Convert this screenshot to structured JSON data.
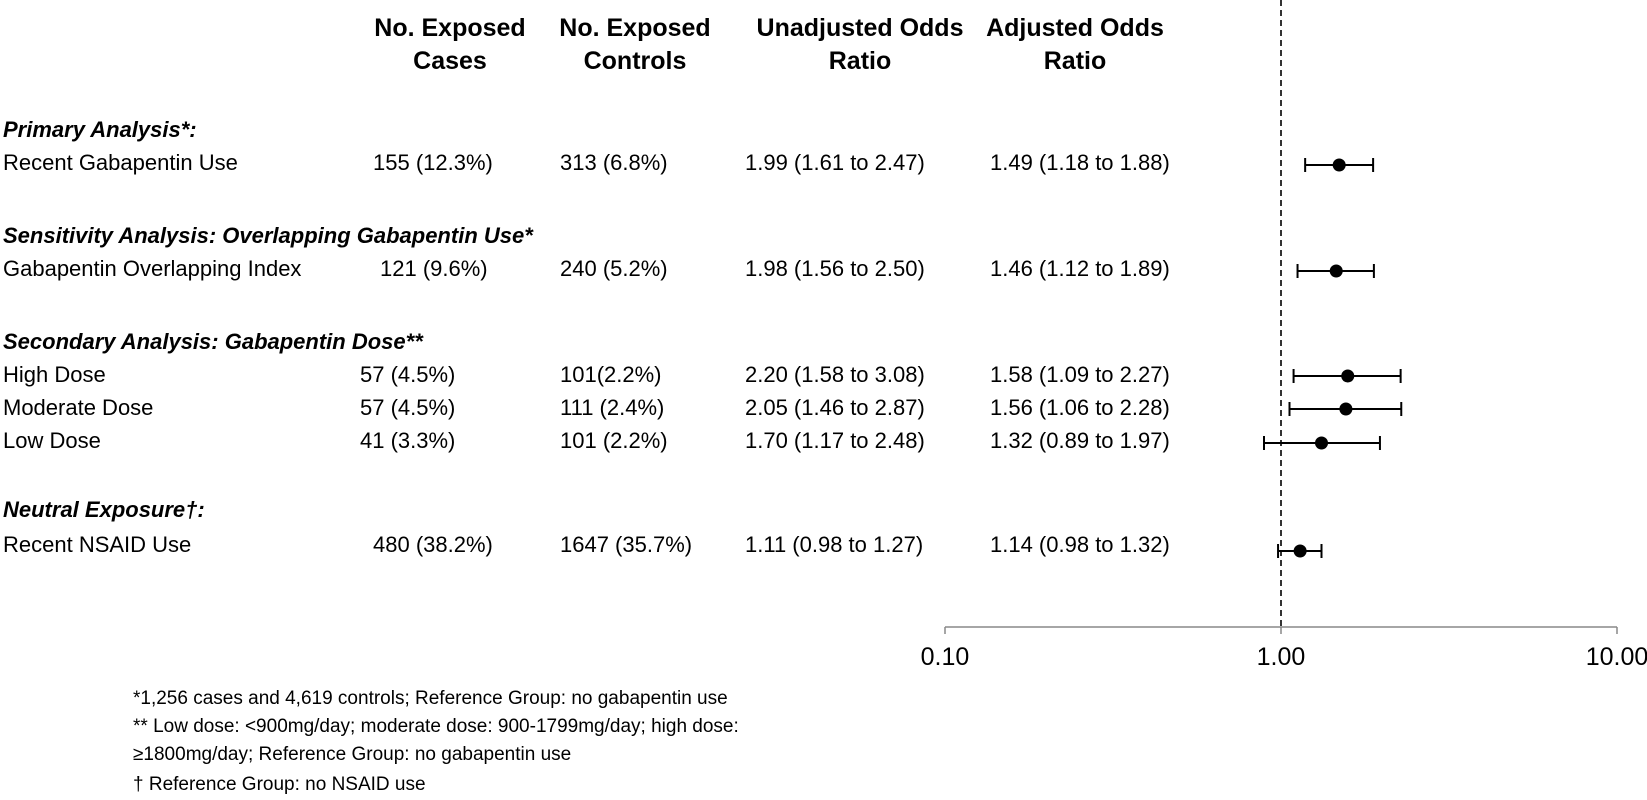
{
  "headers": {
    "cases": [
      "No. Exposed",
      "Cases"
    ],
    "controls": [
      "No. Exposed",
      "Controls"
    ],
    "unadjusted": [
      "Unadjusted Odds",
      "Ratio"
    ],
    "adjusted": [
      "Adjusted Odds",
      "Ratio"
    ]
  },
  "sections": [
    {
      "title": "Primary Analysis*:",
      "rows": [
        {
          "label": "Recent Gabapentin Use",
          "cases": "155 (12.3%)",
          "controls": "313 (6.8%)",
          "unadjusted": "1.99 (1.61 to 2.47)",
          "adjusted": "1.49 (1.18 to 1.88)"
        }
      ]
    },
    {
      "title": "Sensitivity Analysis: Overlapping Gabapentin Use*",
      "rows": [
        {
          "label": "Gabapentin Overlapping Index",
          "cases": "121 (9.6%)",
          "controls": "240 (5.2%)",
          "unadjusted": "1.98 (1.56 to 2.50)",
          "adjusted": "1.46 (1.12 to 1.89)"
        }
      ]
    },
    {
      "title": "Secondary Analysis: Gabapentin Dose**",
      "rows": [
        {
          "label": "High Dose",
          "cases": "57 (4.5%)",
          "controls": "101(2.2%)",
          "unadjusted": "2.20 (1.58 to 3.08)",
          "adjusted": "1.58 (1.09 to 2.27)"
        },
        {
          "label": "Moderate Dose",
          "cases": "57 (4.5%)",
          "controls": "111 (2.4%)",
          "unadjusted": "2.05 (1.46 to 2.87)",
          "adjusted": "1.56 (1.06 to 2.28)"
        },
        {
          "label": "Low Dose",
          "cases": "41 (3.3%)",
          "controls": "101 (2.2%)",
          "unadjusted": "1.70 (1.17 to 2.48)",
          "adjusted": "1.32 (0.89 to 1.97)"
        }
      ]
    },
    {
      "title": "Neutral Exposure†:",
      "rows": [
        {
          "label": "Recent NSAID Use",
          "cases": "480 (38.2%)",
          "controls": "1647 (35.7%)",
          "unadjusted": "1.11 (0.98 to 1.27)",
          "adjusted": "1.14 (0.98 to 1.32)"
        }
      ]
    }
  ],
  "footnotes": [
    "*1,256 cases and 4,619 controls; Reference Group: no gabapentin use",
    "** Low dose: <900mg/day; moderate dose: 900-1799mg/day; high dose:",
    "≥1800mg/day; Reference Group: no gabapentin use",
    "† Reference Group: no NSAID use"
  ],
  "chart_data": {
    "type": "scatter",
    "scale": "log",
    "xlim": [
      0.1,
      10
    ],
    "reference_line": 1.0,
    "tick_labels": [
      "0.10",
      "1.00",
      "10.00"
    ],
    "tick_values": [
      0.1,
      1,
      10
    ],
    "points": [
      {
        "row": "Recent Gabapentin Use",
        "estimate": 1.49,
        "lower": 1.18,
        "upper": 1.88
      },
      {
        "row": "Gabapentin Overlapping Index",
        "estimate": 1.46,
        "lower": 1.12,
        "upper": 1.89
      },
      {
        "row": "High Dose",
        "estimate": 1.58,
        "lower": 1.09,
        "upper": 2.27
      },
      {
        "row": "Moderate Dose",
        "estimate": 1.56,
        "lower": 1.06,
        "upper": 2.28
      },
      {
        "row": "Low Dose",
        "estimate": 1.32,
        "lower": 0.89,
        "upper": 1.97
      },
      {
        "row": "Recent NSAID Use",
        "estimate": 1.14,
        "lower": 0.98,
        "upper": 1.32
      }
    ]
  }
}
